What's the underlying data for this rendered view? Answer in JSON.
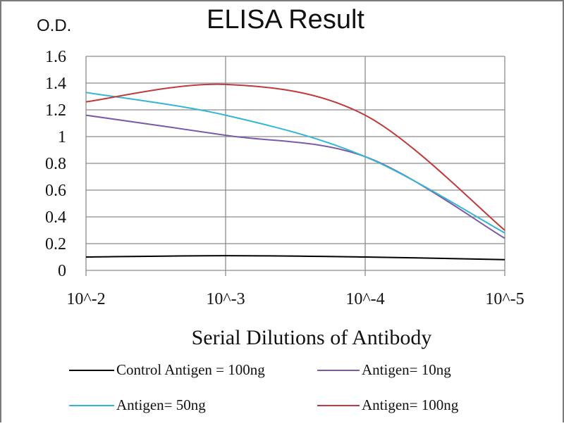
{
  "chart_data": {
    "type": "line",
    "title": "ELISA Result",
    "ylabel": "O.D.",
    "xlabel": "Serial Dilutions  of Antibody",
    "categories": [
      "10^-2",
      "10^-3",
      "10^-4",
      "10^-5"
    ],
    "ylim": [
      0,
      1.6
    ],
    "yticks": [
      "0",
      "0.2",
      "0.4",
      "0.6",
      "0.8",
      "1",
      "1.2",
      "1.4",
      "1.6"
    ],
    "grid": true,
    "legend_position": "bottom",
    "series": [
      {
        "name": "Control Antigen = 100ng",
        "color": "#000000",
        "values": [
          0.1,
          0.11,
          0.1,
          0.08
        ]
      },
      {
        "name": "Antigen= 10ng",
        "color": "#7b5aa6",
        "values": [
          1.16,
          1.01,
          0.85,
          0.24
        ]
      },
      {
        "name": "Antigen= 50ng",
        "color": "#33b5d6",
        "values": [
          1.33,
          1.16,
          0.85,
          0.28
        ]
      },
      {
        "name": "Antigen= 100ng",
        "color": "#c0393b",
        "values": [
          1.26,
          1.39,
          1.16,
          0.3
        ]
      }
    ]
  }
}
